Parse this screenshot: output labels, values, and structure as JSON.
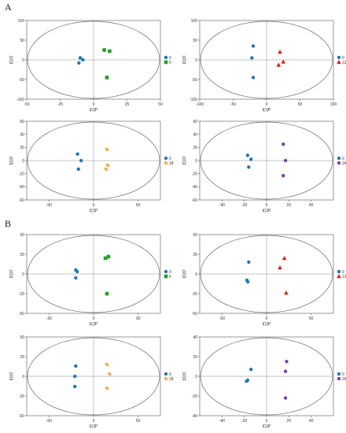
{
  "sections": [
    {
      "label": "A"
    },
    {
      "label": "B"
    }
  ],
  "colors": {
    "control": "#1f78b4",
    "square": "#22a02a",
    "triangle": "#e31a1c",
    "star": "#f39a2e",
    "circle2": "#7a3fb0"
  },
  "chart_data": [
    {
      "type": "scatter",
      "section": "A",
      "xlabel": "t[1]P",
      "ylabel": "t[1]O",
      "xlim": [
        -50,
        50
      ],
      "ylim": [
        -100,
        100
      ],
      "xticks": [
        -50,
        -25,
        0,
        25,
        50
      ],
      "yticks": [
        -100,
        -50,
        0,
        50,
        100
      ],
      "series": [
        {
          "name": "0",
          "marker": "circle",
          "color": "#1f78b4",
          "points": [
            [
              -10,
              5
            ],
            [
              -11,
              -8
            ],
            [
              -8,
              0
            ]
          ]
        },
        {
          "name": "6",
          "marker": "square",
          "color": "#22a02a",
          "points": [
            [
              8,
              25
            ],
            [
              12,
              22
            ],
            [
              10,
              -45
            ]
          ]
        }
      ]
    },
    {
      "type": "scatter",
      "section": "A",
      "xlabel": "t[1]P",
      "ylabel": "t[1]O",
      "xlim": [
        -100,
        100
      ],
      "ylim": [
        -100,
        100
      ],
      "xticks": [
        -100,
        -50,
        0,
        50,
        100
      ],
      "yticks": [
        -100,
        -50,
        0,
        50,
        100
      ],
      "series": [
        {
          "name": "0",
          "marker": "circle",
          "color": "#1f78b4",
          "points": [
            [
              -20,
              35
            ],
            [
              -22,
              5
            ],
            [
              -20,
              -45
            ]
          ]
        },
        {
          "name": "12",
          "marker": "triangle",
          "color": "#e31a1c",
          "points": [
            [
              20,
              20
            ],
            [
              25,
              -5
            ],
            [
              18,
              -13
            ]
          ]
        }
      ]
    },
    {
      "type": "scatter",
      "section": "A",
      "xlabel": "t[1]P",
      "ylabel": "t[1]O",
      "xlim": [
        -75,
        75
      ],
      "ylim": [
        -60,
        60
      ],
      "xticks": [
        -50,
        0,
        50
      ],
      "yticks": [
        -60,
        -40,
        -20,
        0,
        20,
        40,
        60
      ],
      "series": [
        {
          "name": "0",
          "marker": "circle",
          "color": "#1f78b4",
          "points": [
            [
              -18,
              10
            ],
            [
              -14,
              0
            ],
            [
              -17,
              -13
            ]
          ]
        },
        {
          "name": "18",
          "marker": "star",
          "color": "#f39a2e",
          "points": [
            [
              15,
              17
            ],
            [
              16,
              -7
            ],
            [
              14,
              -13
            ]
          ]
        }
      ]
    },
    {
      "type": "scatter",
      "section": "A",
      "xlabel": "t[1]P",
      "ylabel": "t[1]O",
      "xlim": [
        -60,
        60
      ],
      "ylim": [
        -60,
        60
      ],
      "xticks": [
        -40,
        -20,
        0,
        20,
        40
      ],
      "yticks": [
        -60,
        -40,
        -20,
        0,
        20,
        40,
        60
      ],
      "series": [
        {
          "name": "0",
          "marker": "circle",
          "color": "#1f78b4",
          "points": [
            [
              -17,
              8
            ],
            [
              -14,
              2
            ],
            [
              -16,
              -10
            ]
          ]
        },
        {
          "name": "24",
          "marker": "circle",
          "color": "#7a3fb0",
          "points": [
            [
              15,
              25
            ],
            [
              17,
              0
            ],
            [
              15,
              -23
            ]
          ]
        }
      ]
    },
    {
      "type": "scatter",
      "section": "B",
      "xlabel": "t[1]P",
      "ylabel": "t[1]O",
      "xlim": [
        -45,
        45
      ],
      "ylim": [
        -50,
        50
      ],
      "xticks": [
        -30,
        0,
        30
      ],
      "yticks": [
        -50,
        -25,
        0,
        25,
        50
      ],
      "series": [
        {
          "name": "0",
          "marker": "circle",
          "color": "#1f78b4",
          "points": [
            [
              -12,
              5
            ],
            [
              -11,
              3
            ],
            [
              -12,
              -5
            ]
          ]
        },
        {
          "name": "6",
          "marker": "square",
          "color": "#22a02a",
          "points": [
            [
              8,
              20
            ],
            [
              10,
              22
            ],
            [
              9,
              -25
            ]
          ]
        }
      ]
    },
    {
      "type": "scatter",
      "section": "B",
      "xlabel": "t[1]P",
      "ylabel": "t[1]O",
      "xlim": [
        -75,
        75
      ],
      "ylim": [
        -50,
        50
      ],
      "xticks": [
        -50,
        0,
        50
      ],
      "yticks": [
        -50,
        -25,
        0,
        25,
        50
      ],
      "series": [
        {
          "name": "0",
          "marker": "circle",
          "color": "#1f78b4",
          "points": [
            [
              -20,
              15
            ],
            [
              -22,
              -8
            ],
            [
              -21,
              -10
            ]
          ]
        },
        {
          "name": "12",
          "marker": "triangle",
          "color": "#e31a1c",
          "points": [
            [
              20,
              20
            ],
            [
              15,
              8
            ],
            [
              22,
              -24
            ]
          ]
        }
      ]
    },
    {
      "type": "scatter",
      "section": "B",
      "xlabel": "t[1]P",
      "ylabel": "t[1]O",
      "xlim": [
        -75,
        75
      ],
      "ylim": [
        -50,
        50
      ],
      "xticks": [
        -50,
        0,
        50
      ],
      "yticks": [
        -50,
        -25,
        0,
        25,
        50
      ],
      "series": [
        {
          "name": "0",
          "marker": "circle",
          "color": "#1f78b4",
          "points": [
            [
              -20,
              13
            ],
            [
              -21,
              0
            ],
            [
              -21,
              -13
            ]
          ]
        },
        {
          "name": "18",
          "marker": "star",
          "color": "#f39a2e",
          "points": [
            [
              15,
              15
            ],
            [
              18,
              3
            ],
            [
              15,
              -15
            ]
          ]
        }
      ]
    },
    {
      "type": "scatter",
      "section": "B",
      "xlabel": "t[1]P",
      "ylabel": "t[1]O",
      "xlim": [
        -60,
        60
      ],
      "ylim": [
        -40,
        40
      ],
      "xticks": [
        -40,
        -20,
        0,
        20,
        40
      ],
      "yticks": [
        -40,
        -20,
        0,
        20,
        40
      ],
      "series": [
        {
          "name": "0",
          "marker": "circle",
          "color": "#1f78b4",
          "points": [
            [
              -14,
              7
            ],
            [
              -17,
              -4
            ],
            [
              -18,
              -5
            ]
          ]
        },
        {
          "name": "24",
          "marker": "circle",
          "color": "#7a3fb0",
          "points": [
            [
              18,
              15
            ],
            [
              17,
              5
            ],
            [
              17,
              -22
            ]
          ]
        }
      ]
    }
  ]
}
